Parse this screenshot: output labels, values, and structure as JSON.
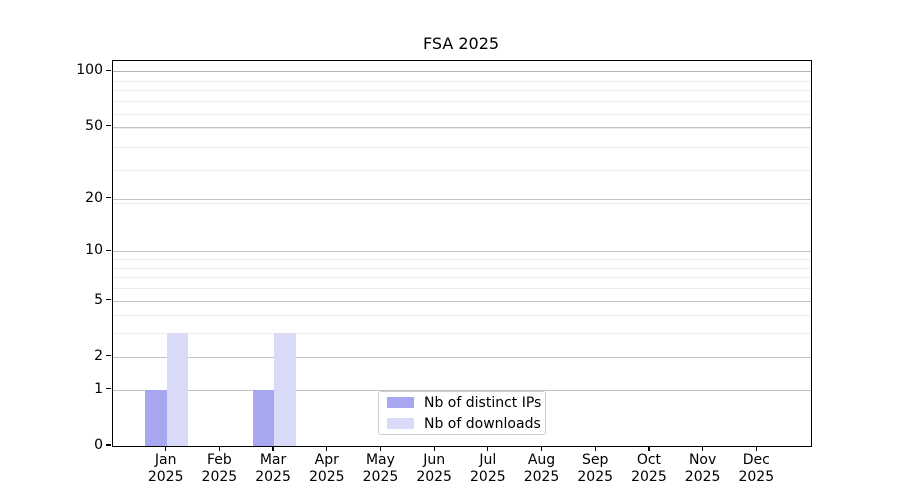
{
  "chart_data": {
    "type": "bar",
    "title": "FSA 2025",
    "categories": [
      "Jan",
      "Feb",
      "Mar",
      "Apr",
      "May",
      "Jun",
      "Jul",
      "Aug",
      "Sep",
      "Oct",
      "Nov",
      "Dec"
    ],
    "year_label": "2025",
    "series": [
      {
        "name": "Nb of distinct IPs",
        "color": "#a6a6f1",
        "values": [
          1,
          0,
          1,
          0,
          0,
          0,
          0,
          0,
          0,
          0,
          0,
          0
        ]
      },
      {
        "name": "Nb of downloads",
        "color": "#d9d9f8",
        "values": [
          3,
          0,
          3,
          0,
          0,
          0,
          0,
          0,
          0,
          0,
          0,
          0
        ]
      }
    ],
    "y_axis": {
      "scale": "log1p",
      "major_ticks": [
        0,
        1,
        2,
        5,
        10,
        20,
        50,
        100
      ],
      "minor_ticks": [
        3,
        4,
        6,
        7,
        8,
        9,
        19,
        29,
        39,
        49,
        59,
        69,
        79,
        89
      ],
      "top_value": 113
    },
    "grid": {
      "major_color": "#c2c2c2",
      "minor_color": "#ececec"
    },
    "legend": {
      "position": "lower center"
    },
    "colors": {
      "spine": "#000000",
      "text": "#000000"
    }
  }
}
